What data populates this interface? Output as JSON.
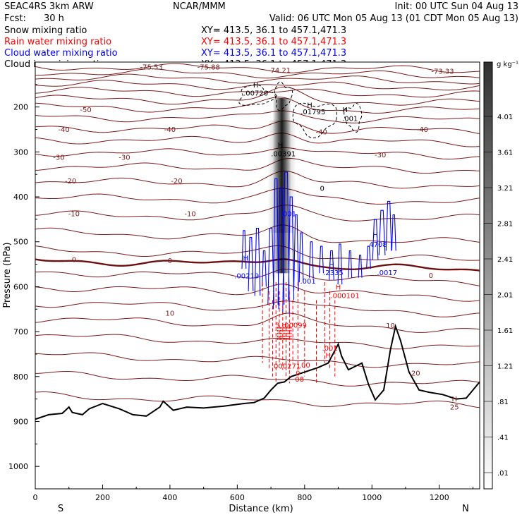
{
  "header": {
    "model": "SEAC4RS  3km ARW",
    "center": "NCAR/MMM",
    "init": "Init: 00 UTC Sun 04 Aug 13",
    "fcst_label": "Fcst:",
    "fcst_value": "30 h",
    "valid": "Valid: 06 UTC Mon 05 Aug 13 (01 CDT Mon 05 Aug 13)"
  },
  "fields": [
    {
      "name": "Snow mixing ratio",
      "xy": "XY= 413.5, 36.1 to 457.1,471.3",
      "color": "#000000"
    },
    {
      "name": "Rain water mixing ratio",
      "xy": "XY= 413.5, 36.1 to 457.1,471.3",
      "color": "#ff0000"
    },
    {
      "name": "Cloud water mixing ratio",
      "xy": "XY= 413.5, 36.1 to 457.1,471.3",
      "color": "#0000ff"
    },
    {
      "name": "Cloud ice mixing ratio",
      "xy": "XY= 413.5, 36.1 to 457.1,471.3",
      "color": "#000000"
    }
  ],
  "colorbar": {
    "unit": "g kg⁻¹",
    "ticks": [
      "4.01",
      "3.61",
      "3.21",
      "2.81",
      "2.41",
      "2.01",
      "1.61",
      "1.21",
      ".81",
      ".41",
      ".01"
    ]
  },
  "colors": {
    "temperature": "#7a1a1a",
    "freezing": "#6e1010",
    "rain": "#ff0000",
    "cloud_water": "#0000ff",
    "terrain": "#000000",
    "ice": "#000000"
  },
  "chart_data": {
    "type": "cross-section",
    "xlabel": "Distance (km)",
    "ylabel": "Pressure (hPa)",
    "xlim": [
      0,
      1320
    ],
    "ylim": [
      1050,
      100
    ],
    "x_ticks": [
      "0",
      "200",
      "400",
      "600",
      "800",
      "1000",
      "1200"
    ],
    "y_ticks": [
      "200",
      "300",
      "400",
      "500",
      "600",
      "700",
      "800",
      "900",
      "1000"
    ],
    "x_end_labels": {
      "left": "S",
      "right": "N"
    },
    "temperature_contour_labels": [
      {
        "text": "-75.53",
        "x": 345,
        "p": 110
      },
      {
        "text": "-75.88",
        "x": 515,
        "p": 110
      },
      {
        "text": "-74.21",
        "x": 725,
        "p": 117
      },
      {
        "text": "-73.33",
        "x": 1210,
        "p": 120
      },
      {
        "text": "-50",
        "x": 150,
        "p": 205
      },
      {
        "text": "-40",
        "x": 85,
        "p": 249
      },
      {
        "text": "-40",
        "x": 400,
        "p": 249
      },
      {
        "text": "-40",
        "x": 850,
        "p": 255
      },
      {
        "text": "-40",
        "x": 1150,
        "p": 249
      },
      {
        "text": "-30",
        "x": 70,
        "p": 311
      },
      {
        "text": "-30",
        "x": 265,
        "p": 311
      },
      {
        "text": "-30",
        "x": 1025,
        "p": 306
      },
      {
        "text": "-20",
        "x": 105,
        "p": 364
      },
      {
        "text": "-20",
        "x": 420,
        "p": 364
      },
      {
        "text": "-10",
        "x": 115,
        "p": 437
      },
      {
        "text": "-10",
        "x": 460,
        "p": 437
      },
      {
        "text": "0",
        "x": 115,
        "p": 539
      },
      {
        "text": "0",
        "x": 400,
        "p": 541
      },
      {
        "text": "0",
        "x": 1175,
        "p": 574
      },
      {
        "text": "10",
        "x": 400,
        "p": 658
      },
      {
        "text": "10",
        "x": 1055,
        "p": 686
      },
      {
        "text": "20",
        "x": 1130,
        "p": 792
      }
    ],
    "field_value_labels": [
      {
        "text": "H",
        "x": 655,
        "p": 150,
        "field": "ice"
      },
      {
        "text": ".00720",
        "x": 655,
        "p": 168,
        "field": "ice"
      },
      {
        "text": "H",
        "x": 815,
        "p": 195,
        "field": "ice"
      },
      {
        "text": ".01795",
        "x": 825,
        "p": 210,
        "field": "ice"
      },
      {
        "text": "H",
        "x": 920,
        "p": 205,
        "field": "ice"
      },
      {
        "text": ".001",
        "x": 935,
        "p": 225,
        "field": "ice"
      },
      {
        "text": "H",
        "x": 728,
        "p": 284,
        "field": "ice"
      },
      {
        "text": ".00391",
        "x": 737,
        "p": 303,
        "field": "ice"
      },
      {
        "text": "0",
        "x": 852,
        "p": 380,
        "field": "ice"
      },
      {
        "text": ".001",
        "x": 752,
        "p": 437,
        "field": "cloud_water"
      },
      {
        "text": "H",
        "x": 1010,
        "p": 484,
        "field": "cloud_water"
      },
      {
        "text": ".4708",
        "x": 1015,
        "p": 505,
        "field": "cloud_water"
      },
      {
        "text": "H",
        "x": 625,
        "p": 536,
        "field": "cloud_water"
      },
      {
        "text": ".00219",
        "x": 628,
        "p": 575,
        "field": "cloud_water"
      },
      {
        "text": "H",
        "x": 880,
        "p": 550,
        "field": "cloud_water"
      },
      {
        "text": ".2335",
        "x": 885,
        "p": 568,
        "field": "cloud_water"
      },
      {
        "text": ".0017",
        "x": 1045,
        "p": 568,
        "field": "cloud_water"
      },
      {
        "text": ".001",
        "x": 810,
        "p": 587,
        "field": "cloud_water"
      },
      {
        "text": "H",
        "x": 900,
        "p": 600,
        "field": "rain"
      },
      {
        "text": ".000101",
        "x": 920,
        "p": 619,
        "field": "rain"
      },
      {
        "text": "3",
        "x": 720,
        "p": 685,
        "field": "rain"
      },
      {
        "text": "H",
        "x": 740,
        "p": 685,
        "field": "rain"
      },
      {
        "text": ".00099",
        "x": 770,
        "p": 685,
        "field": "rain"
      },
      {
        "text": ".001",
        "x": 875,
        "p": 736,
        "field": "rain"
      },
      {
        "text": "H",
        "x": 870,
        "p": 752,
        "field": "rain"
      },
      {
        "text": ".000271",
        "x": 745,
        "p": 776,
        "field": "rain"
      },
      {
        "text": ".00",
        "x": 800,
        "p": 774,
        "field": "rain"
      },
      {
        "text": "0",
        "x": 780,
        "p": 792,
        "field": "rain"
      },
      {
        "text": "08",
        "x": 785,
        "p": 805,
        "field": "rain"
      },
      {
        "text": "H",
        "x": 1245,
        "p": 849,
        "field": "temperature"
      },
      {
        "text": "25",
        "x": 1245,
        "p": 867,
        "field": "temperature"
      }
    ]
  }
}
